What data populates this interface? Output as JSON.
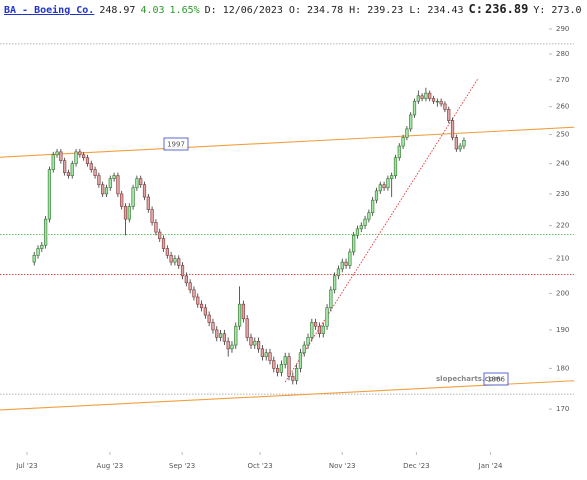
{
  "header": {
    "symbol": "BA - Boeing Co.",
    "last": "248.97",
    "change": "4.03",
    "change_pct": "1.65%",
    "details": "D: 12/06/2023 O: 234.78 H: 239.23 L: 234.43",
    "close_label": "C:",
    "close": "236.89",
    "extra": "Y: 273.0"
  },
  "chart_data": {
    "type": "candlestick",
    "log_scale": true,
    "up_color": "#a4e6a4",
    "down_color": "#e2a6a6",
    "up_edge": "#2f6f2f",
    "down_edge": "#7a3434",
    "xlim": [
      -6,
      136
    ],
    "ylim": [
      160.5,
      294.5
    ],
    "xticks": [
      {
        "value": 1.1,
        "label": "Jul '23"
      },
      {
        "value": 22.9,
        "label": "Aug '23"
      },
      {
        "value": 41.9,
        "label": "Sep '23"
      },
      {
        "value": 62.4,
        "label": "Oct '23"
      },
      {
        "value": 84,
        "label": "Nov '23"
      },
      {
        "value": 103.5,
        "label": "Dec '23"
      },
      {
        "value": 123,
        "label": "Jan '24"
      }
    ],
    "yticks": [
      170,
      180,
      190,
      200,
      210,
      220,
      230,
      240,
      250,
      260,
      270,
      280,
      290
    ],
    "x": [
      3,
      4,
      5,
      6,
      7,
      8,
      9,
      10,
      11,
      12,
      13,
      14,
      15,
      16,
      17,
      18,
      19,
      20,
      21,
      22,
      23,
      24,
      25,
      26,
      27,
      28,
      29,
      30,
      31,
      32,
      33,
      34,
      35,
      36,
      37,
      38,
      39,
      40,
      41,
      42,
      43,
      44,
      45,
      46,
      47,
      48,
      49,
      50,
      51,
      52,
      53,
      54,
      55,
      56,
      57,
      58,
      59,
      60,
      61,
      62,
      63,
      64,
      65,
      66,
      67,
      68,
      69,
      70,
      71,
      72,
      73,
      74,
      75,
      76,
      77,
      78,
      79,
      80,
      81,
      82,
      83,
      84,
      85,
      86,
      87,
      88,
      89,
      90,
      91,
      92,
      93,
      94,
      95,
      96,
      97,
      98,
      99,
      100,
      101,
      102,
      103,
      104,
      105,
      106,
      107,
      108,
      109,
      110,
      111,
      112,
      113,
      114,
      115,
      116
    ],
    "open": [
      209,
      211,
      213,
      214,
      222,
      238,
      243,
      244,
      241,
      237,
      236,
      240,
      244,
      243,
      242,
      240,
      238,
      236,
      233,
      230,
      232,
      235,
      236,
      230,
      226,
      222,
      226,
      232,
      235,
      233,
      229,
      225,
      221,
      218,
      216,
      213,
      211,
      209,
      210,
      208,
      205,
      203,
      201,
      199,
      197,
      196,
      194,
      192,
      190,
      188,
      189,
      187,
      185,
      186,
      191,
      197,
      193,
      188,
      186,
      187,
      185,
      183,
      184,
      182,
      180,
      179,
      181,
      183,
      178,
      177,
      180,
      184,
      186,
      188,
      192,
      191,
      189,
      191,
      196,
      201,
      205,
      207,
      209,
      208,
      212,
      217,
      219,
      220,
      222,
      224,
      228,
      231,
      233,
      232,
      235,
      236,
      242,
      246,
      249,
      252,
      257,
      262,
      264,
      263,
      265,
      263,
      262,
      262,
      261,
      259,
      255,
      249,
      245,
      246
    ],
    "high": [
      212,
      214,
      215,
      223,
      239,
      244,
      245,
      245,
      242,
      238,
      241,
      245,
      245,
      244,
      243,
      241,
      239,
      237,
      234,
      233,
      236,
      237,
      237,
      231,
      227,
      227,
      233,
      236,
      236,
      234,
      230,
      226,
      222,
      219,
      217,
      214,
      212,
      211,
      211,
      209,
      206,
      204,
      202,
      200,
      198,
      197,
      195,
      193,
      191,
      190,
      190,
      188,
      187,
      192,
      202,
      198,
      194,
      189,
      188,
      188,
      186,
      185,
      185,
      183,
      181,
      182,
      184,
      184,
      179,
      181,
      185,
      187,
      189,
      193,
      193,
      192,
      192,
      197,
      202,
      206,
      208,
      210,
      210,
      213,
      218,
      220,
      221,
      223,
      225,
      229,
      232,
      234,
      234,
      236,
      237,
      243,
      247,
      250,
      253,
      258,
      263,
      266,
      265,
      267,
      266,
      264,
      263,
      263,
      262,
      260,
      256,
      250,
      247,
      249
    ],
    "low": [
      208,
      210,
      212,
      213,
      221,
      237,
      242,
      240,
      236,
      235,
      235,
      239,
      242,
      241,
      239,
      237,
      235,
      232,
      229,
      229,
      231,
      234,
      229,
      225,
      217,
      221,
      225,
      231,
      232,
      228,
      224,
      220,
      217,
      215,
      212,
      210,
      208,
      208,
      207,
      204,
      202,
      200,
      198,
      196,
      195,
      193,
      191,
      189,
      187,
      187,
      186,
      183,
      184,
      185,
      190,
      192,
      187,
      185,
      185,
      184,
      182,
      182,
      181,
      179,
      178,
      178,
      180,
      177,
      176,
      176,
      179,
      183,
      185,
      187,
      190,
      188,
      188,
      190,
      195,
      200,
      204,
      206,
      207,
      207,
      211,
      216,
      218,
      219,
      221,
      223,
      227,
      230,
      231,
      231,
      229,
      235,
      241,
      245,
      248,
      251,
      256,
      261,
      262,
      262,
      262,
      261,
      260,
      260,
      258,
      254,
      248,
      244,
      244,
      245
    ],
    "close": [
      211,
      213,
      214,
      222,
      238,
      243,
      244,
      241,
      237,
      236,
      240,
      244,
      243,
      242,
      240,
      238,
      236,
      233,
      230,
      232,
      235,
      236,
      230,
      226,
      222,
      226,
      232,
      235,
      233,
      229,
      225,
      221,
      218,
      216,
      213,
      211,
      209,
      210,
      208,
      205,
      203,
      201,
      199,
      197,
      196,
      194,
      192,
      190,
      188,
      189,
      187,
      185,
      186,
      191,
      197,
      193,
      188,
      186,
      187,
      185,
      183,
      184,
      182,
      180,
      179,
      181,
      183,
      178,
      177,
      180,
      184,
      186,
      188,
      192,
      191,
      189,
      191,
      196,
      201,
      205,
      207,
      209,
      208,
      212,
      217,
      219,
      220,
      222,
      224,
      228,
      231,
      233,
      232,
      235,
      236,
      242,
      246,
      249,
      252,
      257,
      262,
      264,
      263,
      265,
      263,
      262,
      262,
      261,
      259,
      255,
      249,
      245,
      246,
      248
    ],
    "levels": [
      {
        "value": 284,
        "color": "#999999"
      },
      {
        "value": 217.3,
        "color": "#33aa33"
      },
      {
        "value": 205.4,
        "color": "#dd3333"
      },
      {
        "value": 173.6,
        "color": "#999999"
      }
    ],
    "trendlines": [
      {
        "x": [
          -6,
          145
        ],
        "y": [
          242.2,
          252.6
        ],
        "color": "#f0a040",
        "dotted": false
      },
      {
        "x": [
          -6,
          145
        ],
        "y": [
          169.8,
          176.9
        ],
        "color": "#f0a040",
        "dotted": false
      },
      {
        "x": [
          69,
          119.8
        ],
        "y": [
          176.6,
          270.7
        ],
        "color": "#dd3333",
        "dotted": true
      }
    ],
    "annotations": [
      "1997",
      "1866"
    ],
    "watermark": "slopecharts.com"
  }
}
